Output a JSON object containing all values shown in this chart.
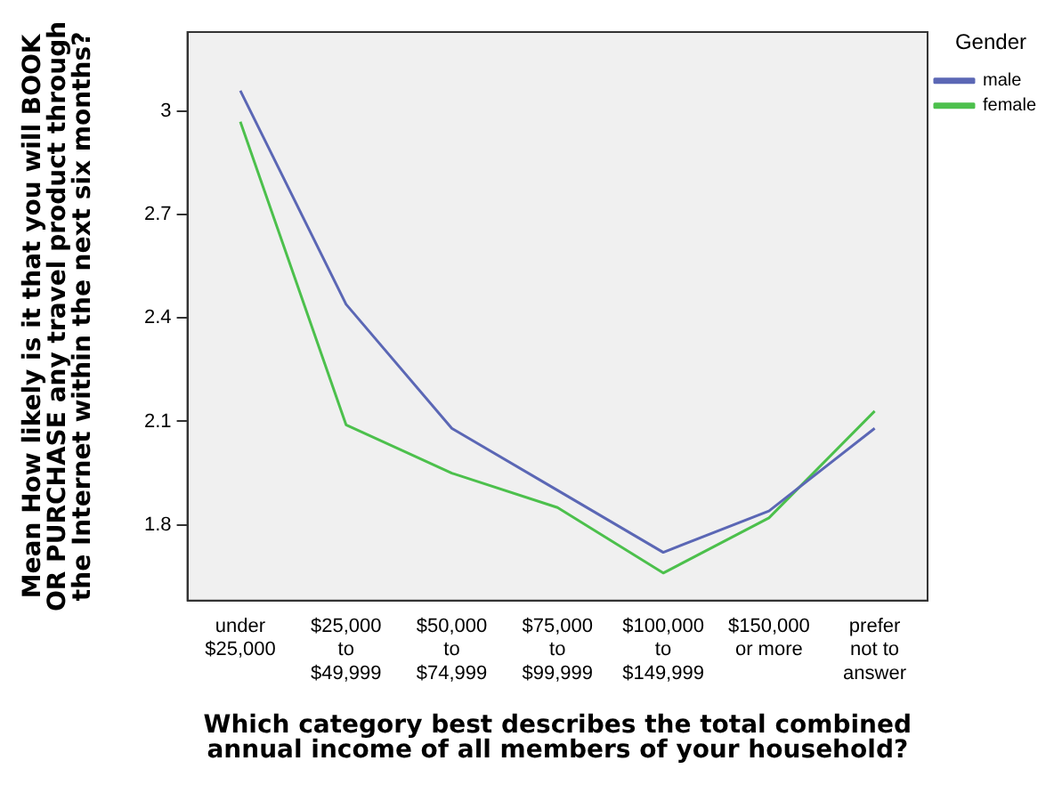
{
  "chart_data": {
    "type": "line",
    "xlabel": "Which category best describes the total combined annual income of all members of your household?",
    "ylabel": "Mean How likely is it that you will BOOK OR PURCHASE any travel product through the Internet within the next six months?",
    "legend_title": "Gender",
    "categories": [
      "under $25,000",
      "$25,000 to $49,999",
      "$50,000 to $74,999",
      "$75,000 to $99,999",
      "$100,000 to $149,999",
      "$150,000 or more",
      "prefer not to answer"
    ],
    "series": [
      {
        "name": "male",
        "color": "#5b67b5",
        "values": [
          3.06,
          2.44,
          2.08,
          1.9,
          1.72,
          1.84,
          2.08
        ]
      },
      {
        "name": "female",
        "color": "#4cc04c",
        "values": [
          2.97,
          2.09,
          1.95,
          1.85,
          1.66,
          1.82,
          2.13
        ]
      }
    ],
    "ylim": [
      1.58,
      3.23
    ],
    "yticks": [
      1.8,
      2.1,
      2.4,
      2.7,
      3
    ],
    "grid": false,
    "legend": "top right",
    "marker": "none",
    "line_style": "solid"
  }
}
